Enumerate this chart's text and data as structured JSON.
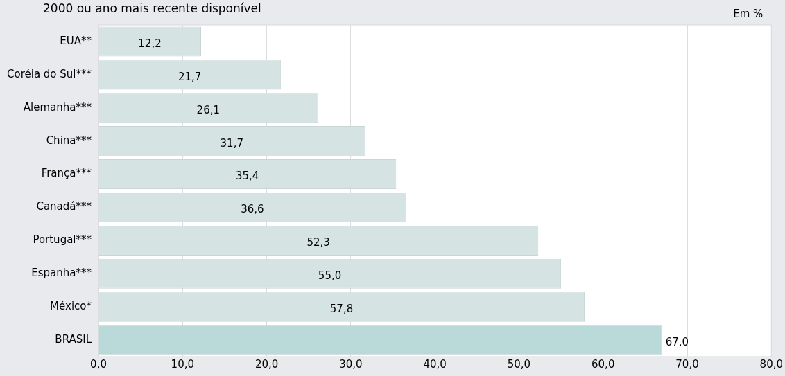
{
  "chart_data": {
    "type": "bar",
    "orientation": "horizontal",
    "subtitle": "2000 ou ano mais recente disponível",
    "annotations": [
      "Em %"
    ],
    "categories": [
      "EUA**",
      "Coréia do Sul***",
      "Alemanha***",
      "China***",
      "França***",
      "Canadá***",
      "Portugal***",
      "Espanha***",
      "México*",
      "BRASIL"
    ],
    "values": [
      12.2,
      21.7,
      26.1,
      31.7,
      35.4,
      36.6,
      52.3,
      55.0,
      57.8,
      67.0
    ],
    "colors": [
      "#d5e3e2",
      "#d5e3e2",
      "#d5e3e2",
      "#d5e3e2",
      "#d5e3e2",
      "#d5e3e2",
      "#d5e3e2",
      "#d5e3e2",
      "#d5e3e2",
      "#b9dad8"
    ],
    "value_labels": [
      "12,2",
      "21,7",
      "26,1",
      "31,7",
      "35,4",
      "36,6",
      "52,3",
      "55,0",
      "57,8",
      "67,0"
    ],
    "xlim": [
      0,
      80
    ],
    "xticks": [
      {
        "value": 0,
        "label": "0,0"
      },
      {
        "value": 10,
        "label": "10,0"
      },
      {
        "value": 20,
        "label": "20,0"
      },
      {
        "value": 30,
        "label": "30,0"
      },
      {
        "value": 40,
        "label": "40,0"
      },
      {
        "value": 50,
        "label": "50,0"
      },
      {
        "value": 60,
        "label": "60,0"
      },
      {
        "value": 70,
        "label": "70,0"
      },
      {
        "value": 80,
        "label": "80,0"
      }
    ],
    "grid": "x",
    "legend": false
  }
}
